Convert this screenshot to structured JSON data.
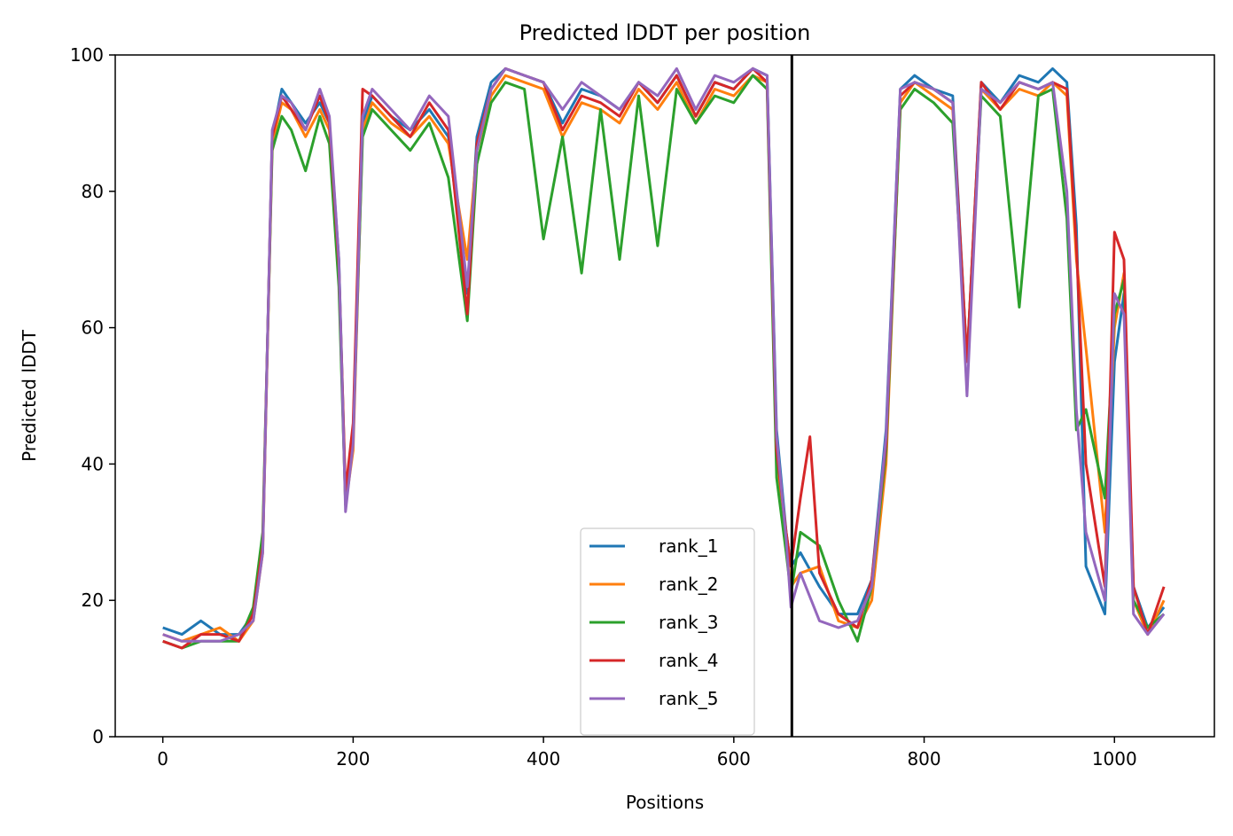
{
  "chart_data": {
    "type": "line",
    "title": "Predicted lDDT per position",
    "xlabel": "Positions",
    "ylabel": "Predicted lDDT",
    "xlim": [
      -50,
      1105
    ],
    "ylim": [
      0,
      100
    ],
    "xticks": [
      0,
      200,
      400,
      600,
      800,
      1000
    ],
    "yticks": [
      0,
      20,
      40,
      60,
      80,
      100
    ],
    "xtick_labels": [
      "0",
      "200",
      "400",
      "600",
      "800",
      "1000"
    ],
    "ytick_labels": [
      "0",
      "20",
      "40",
      "60",
      "80",
      "100"
    ],
    "grid": false,
    "legend_position": "lower-right-center",
    "vertical_line": {
      "x": 661,
      "color": "#000000"
    },
    "series": [
      {
        "name": "rank_1",
        "color": "#1f77b4",
        "x": [
          0,
          20,
          40,
          60,
          80,
          95,
          105,
          115,
          125,
          135,
          150,
          165,
          175,
          185,
          192,
          200,
          210,
          220,
          240,
          260,
          280,
          300,
          320,
          330,
          345,
          360,
          380,
          400,
          420,
          440,
          460,
          480,
          500,
          520,
          540,
          560,
          580,
          600,
          620,
          635,
          645,
          655,
          660,
          670,
          690,
          710,
          730,
          745,
          760,
          775,
          790,
          810,
          830,
          845,
          860,
          880,
          900,
          920,
          935,
          950,
          960,
          970,
          990,
          1000,
          1010,
          1020,
          1035,
          1052
        ],
        "y": [
          16,
          15,
          17,
          15,
          15,
          18,
          28,
          88,
          95,
          93,
          90,
          93,
          90,
          70,
          35,
          45,
          90,
          94,
          91,
          89,
          92,
          88,
          65,
          88,
          96,
          98,
          97,
          96,
          90,
          95,
          94,
          92,
          96,
          93,
          97,
          91,
          96,
          95,
          98,
          97,
          45,
          30,
          25,
          27,
          22,
          18,
          18,
          23,
          45,
          95,
          97,
          95,
          94,
          55,
          96,
          93,
          97,
          96,
          98,
          96,
          75,
          25,
          18,
          55,
          65,
          22,
          16,
          19
        ]
      },
      {
        "name": "rank_2",
        "color": "#ff7f0e",
        "x": [
          0,
          20,
          40,
          60,
          80,
          95,
          105,
          115,
          125,
          135,
          150,
          165,
          175,
          185,
          192,
          200,
          210,
          220,
          240,
          260,
          280,
          300,
          320,
          330,
          345,
          360,
          380,
          400,
          420,
          440,
          460,
          480,
          500,
          520,
          540,
          560,
          580,
          600,
          620,
          635,
          645,
          655,
          660,
          670,
          690,
          710,
          730,
          745,
          760,
          775,
          790,
          810,
          830,
          845,
          860,
          880,
          900,
          920,
          935,
          950,
          960,
          970,
          990,
          1000,
          1010,
          1020,
          1035,
          1052
        ],
        "y": [
          15,
          14,
          15,
          16,
          14,
          17,
          27,
          87,
          93,
          92,
          88,
          92,
          89,
          68,
          34,
          42,
          89,
          93,
          90,
          88,
          91,
          87,
          70,
          86,
          94,
          97,
          96,
          95,
          88,
          93,
          92,
          90,
          95,
          92,
          96,
          90,
          95,
          94,
          97,
          96,
          40,
          28,
          22,
          24,
          25,
          17,
          16,
          20,
          40,
          93,
          96,
          94,
          92,
          55,
          95,
          92,
          95,
          94,
          96,
          94,
          70,
          57,
          30,
          60,
          68,
          20,
          15,
          20
        ]
      },
      {
        "name": "rank_3",
        "color": "#2ca02c",
        "x": [
          0,
          20,
          40,
          60,
          80,
          95,
          105,
          115,
          125,
          135,
          150,
          165,
          175,
          185,
          192,
          200,
          210,
          220,
          240,
          260,
          280,
          300,
          320,
          330,
          345,
          360,
          380,
          400,
          420,
          440,
          460,
          480,
          500,
          520,
          540,
          560,
          580,
          600,
          620,
          635,
          645,
          655,
          660,
          670,
          690,
          710,
          730,
          745,
          760,
          775,
          790,
          810,
          830,
          845,
          860,
          880,
          900,
          920,
          935,
          950,
          960,
          970,
          990,
          1000,
          1010,
          1020,
          1035,
          1052
        ],
        "y": [
          14,
          13,
          14,
          14,
          14,
          19,
          30,
          86,
          91,
          89,
          83,
          91,
          87,
          66,
          34,
          44,
          88,
          92,
          89,
          86,
          90,
          82,
          61,
          84,
          93,
          96,
          95,
          73,
          88,
          68,
          92,
          70,
          94,
          72,
          95,
          90,
          94,
          93,
          97,
          95,
          38,
          27,
          21,
          30,
          28,
          20,
          14,
          22,
          42,
          92,
          95,
          93,
          90,
          55,
          94,
          91,
          63,
          94,
          95,
          76,
          45,
          48,
          35,
          62,
          67,
          20,
          16,
          18
        ]
      },
      {
        "name": "rank_4",
        "color": "#d62728",
        "x": [
          0,
          20,
          40,
          60,
          80,
          95,
          105,
          115,
          125,
          135,
          150,
          165,
          175,
          185,
          192,
          200,
          210,
          220,
          240,
          260,
          280,
          300,
          320,
          330,
          345,
          360,
          380,
          400,
          420,
          440,
          460,
          480,
          500,
          520,
          540,
          560,
          580,
          600,
          620,
          635,
          645,
          655,
          660,
          670,
          680,
          690,
          710,
          730,
          745,
          760,
          775,
          790,
          810,
          830,
          845,
          860,
          880,
          900,
          920,
          935,
          950,
          960,
          970,
          990,
          1000,
          1010,
          1020,
          1035,
          1052
        ],
        "y": [
          14,
          13,
          15,
          15,
          14,
          18,
          28,
          88,
          94,
          92,
          89,
          94,
          90,
          69,
          36,
          46,
          95,
          94,
          91,
          88,
          93,
          89,
          62,
          87,
          95,
          98,
          97,
          96,
          89,
          94,
          93,
          91,
          96,
          93,
          97,
          91,
          96,
          95,
          98,
          96,
          42,
          30,
          25,
          35,
          44,
          24,
          18,
          16,
          23,
          43,
          94,
          96,
          95,
          93,
          55,
          96,
          92,
          96,
          95,
          96,
          95,
          72,
          40,
          22,
          74,
          70,
          22,
          15,
          22
        ]
      },
      {
        "name": "rank_5",
        "color": "#9467bd",
        "x": [
          0,
          20,
          40,
          60,
          80,
          95,
          105,
          115,
          125,
          135,
          150,
          165,
          175,
          185,
          192,
          200,
          210,
          220,
          240,
          260,
          280,
          300,
          320,
          330,
          345,
          360,
          380,
          400,
          420,
          440,
          460,
          480,
          500,
          520,
          540,
          560,
          580,
          600,
          620,
          635,
          645,
          655,
          660,
          670,
          690,
          710,
          730,
          745,
          760,
          775,
          790,
          810,
          830,
          845,
          860,
          880,
          900,
          920,
          935,
          950,
          960,
          970,
          990,
          1000,
          1010,
          1020,
          1035,
          1052
        ],
        "y": [
          15,
          14,
          14,
          14,
          15,
          17,
          27,
          89,
          94,
          93,
          89,
          95,
          91,
          70,
          33,
          43,
          91,
          95,
          92,
          89,
          94,
          91,
          66,
          86,
          95,
          98,
          97,
          96,
          92,
          96,
          94,
          92,
          96,
          94,
          98,
          92,
          97,
          96,
          98,
          97,
          44,
          29,
          19,
          24,
          17,
          16,
          17,
          22,
          44,
          95,
          96,
          95,
          93,
          50,
          95,
          93,
          96,
          95,
          96,
          80,
          48,
          30,
          20,
          65,
          62,
          18,
          15,
          18
        ]
      }
    ]
  }
}
